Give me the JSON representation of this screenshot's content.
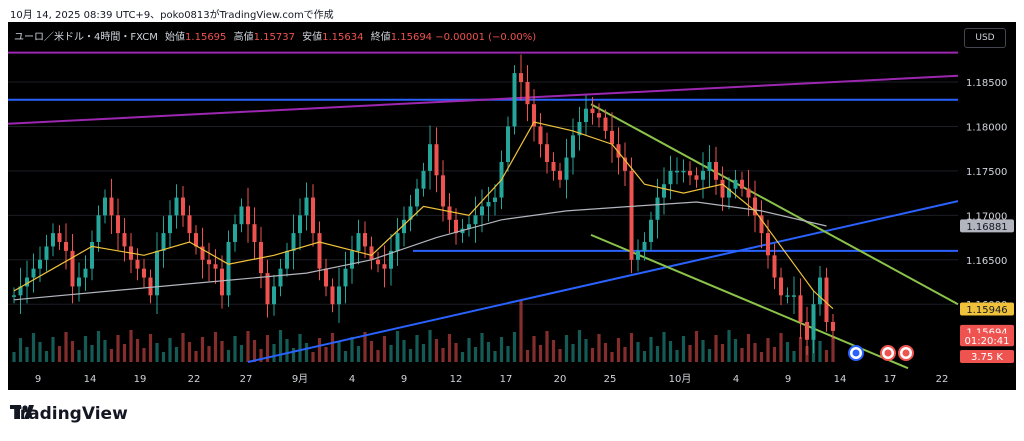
{
  "caption": "10月 14, 2025 08:39 UTC+9、poko0813がTradingView.comで作成",
  "legend": {
    "symbol": "ユーロ／米ドル・4時間・FXCM",
    "open_label": "始値",
    "open": "1.15695",
    "high_label": "高値",
    "high": "1.15737",
    "low_label": "安値",
    "low": "1.15634",
    "close_label": "終値",
    "close": "1.15694",
    "change": "−0.00001 (−0.00%)"
  },
  "currency_button": "USD",
  "brand": "TradingView",
  "colors": {
    "up": "#26a69a",
    "down": "#ef5350",
    "ma_fast": "#f0c23b",
    "ma_slow": "#b2b5be",
    "hline": "#2962ff",
    "purple": "#9c27b0",
    "channel": "#8bc34a"
  },
  "chart_data": {
    "type": "candlestick",
    "ylim": [
      1.1535,
      1.1895
    ],
    "y_ticks": [
      "1.18500",
      "1.18000",
      "1.17500",
      "1.17000",
      "1.16500",
      "1.16000"
    ],
    "x_ticks": [
      "9",
      "14",
      "19",
      "22",
      "27",
      "9月",
      "4",
      "9",
      "12",
      "17",
      "20",
      "25",
      "10月",
      "4",
      "9",
      "14",
      "17",
      "22"
    ],
    "price_badges": {
      "ma": "1.16881",
      "ma_fast": "1.15946",
      "close": "1.15694",
      "countdown": "01:20:41",
      "volume": "3.75 K"
    },
    "horizontal_levels": [
      1.1883,
      1.183,
      1.166
    ],
    "close_path": [
      [
        0,
        1.161
      ],
      [
        2,
        1.163
      ],
      [
        4,
        1.165
      ],
      [
        6,
        1.168
      ],
      [
        8,
        1.166
      ],
      [
        9,
        1.162
      ],
      [
        11,
        1.164
      ],
      [
        13,
        1.17
      ],
      [
        14,
        1.172
      ],
      [
        16,
        1.168
      ],
      [
        18,
        1.165
      ],
      [
        20,
        1.163
      ],
      [
        21,
        1.161
      ],
      [
        22,
        1.166
      ],
      [
        24,
        1.17
      ],
      [
        25,
        1.172
      ],
      [
        27,
        1.168
      ],
      [
        29,
        1.165
      ],
      [
        31,
        1.164
      ],
      [
        32,
        1.161
      ],
      [
        33,
        1.167
      ],
      [
        35,
        1.171
      ],
      [
        37,
        1.167
      ],
      [
        39,
        1.16
      ],
      [
        40,
        1.162
      ],
      [
        42,
        1.166
      ],
      [
        44,
        1.17
      ],
      [
        45,
        1.172
      ],
      [
        47,
        1.164
      ],
      [
        49,
        1.16
      ],
      [
        51,
        1.164
      ],
      [
        53,
        1.168
      ],
      [
        55,
        1.165
      ],
      [
        57,
        1.164
      ],
      [
        59,
        1.168
      ],
      [
        61,
        1.171
      ],
      [
        63,
        1.175
      ],
      [
        64,
        1.178
      ],
      [
        66,
        1.171
      ],
      [
        68,
        1.168
      ],
      [
        70,
        1.169
      ],
      [
        72,
        1.171
      ],
      [
        74,
        1.172
      ],
      [
        76,
        1.18
      ],
      [
        77,
        1.186
      ],
      [
        78,
        1.185
      ],
      [
        80,
        1.18
      ],
      [
        82,
        1.176
      ],
      [
        84,
        1.174
      ],
      [
        86,
        1.179
      ],
      [
        88,
        1.182
      ],
      [
        90,
        1.181
      ],
      [
        92,
        1.178
      ],
      [
        94,
        1.175
      ],
      [
        95,
        1.165
      ],
      [
        97,
        1.167
      ],
      [
        99,
        1.172
      ],
      [
        101,
        1.175
      ],
      [
        103,
        1.175
      ],
      [
        105,
        1.174
      ],
      [
        107,
        1.176
      ],
      [
        109,
        1.172
      ],
      [
        111,
        1.174
      ],
      [
        113,
        1.172
      ],
      [
        115,
        1.168
      ],
      [
        117,
        1.163
      ],
      [
        118,
        1.161
      ],
      [
        120,
        1.161
      ],
      [
        121,
        1.158
      ],
      [
        122,
        1.156
      ],
      [
        123,
        1.16
      ],
      [
        124,
        1.163
      ],
      [
        125,
        1.158
      ],
      [
        126,
        1.157
      ]
    ],
    "ma_fast": [
      [
        0,
        1.1615
      ],
      [
        6,
        1.164
      ],
      [
        12,
        1.1665
      ],
      [
        20,
        1.1655
      ],
      [
        27,
        1.167
      ],
      [
        33,
        1.1645
      ],
      [
        40,
        1.1655
      ],
      [
        47,
        1.167
      ],
      [
        55,
        1.1655
      ],
      [
        63,
        1.171
      ],
      [
        70,
        1.17
      ],
      [
        75,
        1.174
      ],
      [
        80,
        1.1805
      ],
      [
        86,
        1.1795
      ],
      [
        92,
        1.178
      ],
      [
        97,
        1.1735
      ],
      [
        103,
        1.1725
      ],
      [
        109,
        1.1735
      ],
      [
        114,
        1.1705
      ],
      [
        119,
        1.1655
      ],
      [
        123,
        1.1615
      ],
      [
        126,
        1.1595
      ]
    ],
    "ma_slow": [
      [
        0,
        1.1605
      ],
      [
        15,
        1.1615
      ],
      [
        30,
        1.1625
      ],
      [
        45,
        1.1635
      ],
      [
        55,
        1.165
      ],
      [
        65,
        1.1675
      ],
      [
        75,
        1.1695
      ],
      [
        85,
        1.1705
      ],
      [
        95,
        1.171
      ],
      [
        105,
        1.1715
      ],
      [
        115,
        1.1705
      ],
      [
        125,
        1.1688
      ]
    ]
  }
}
